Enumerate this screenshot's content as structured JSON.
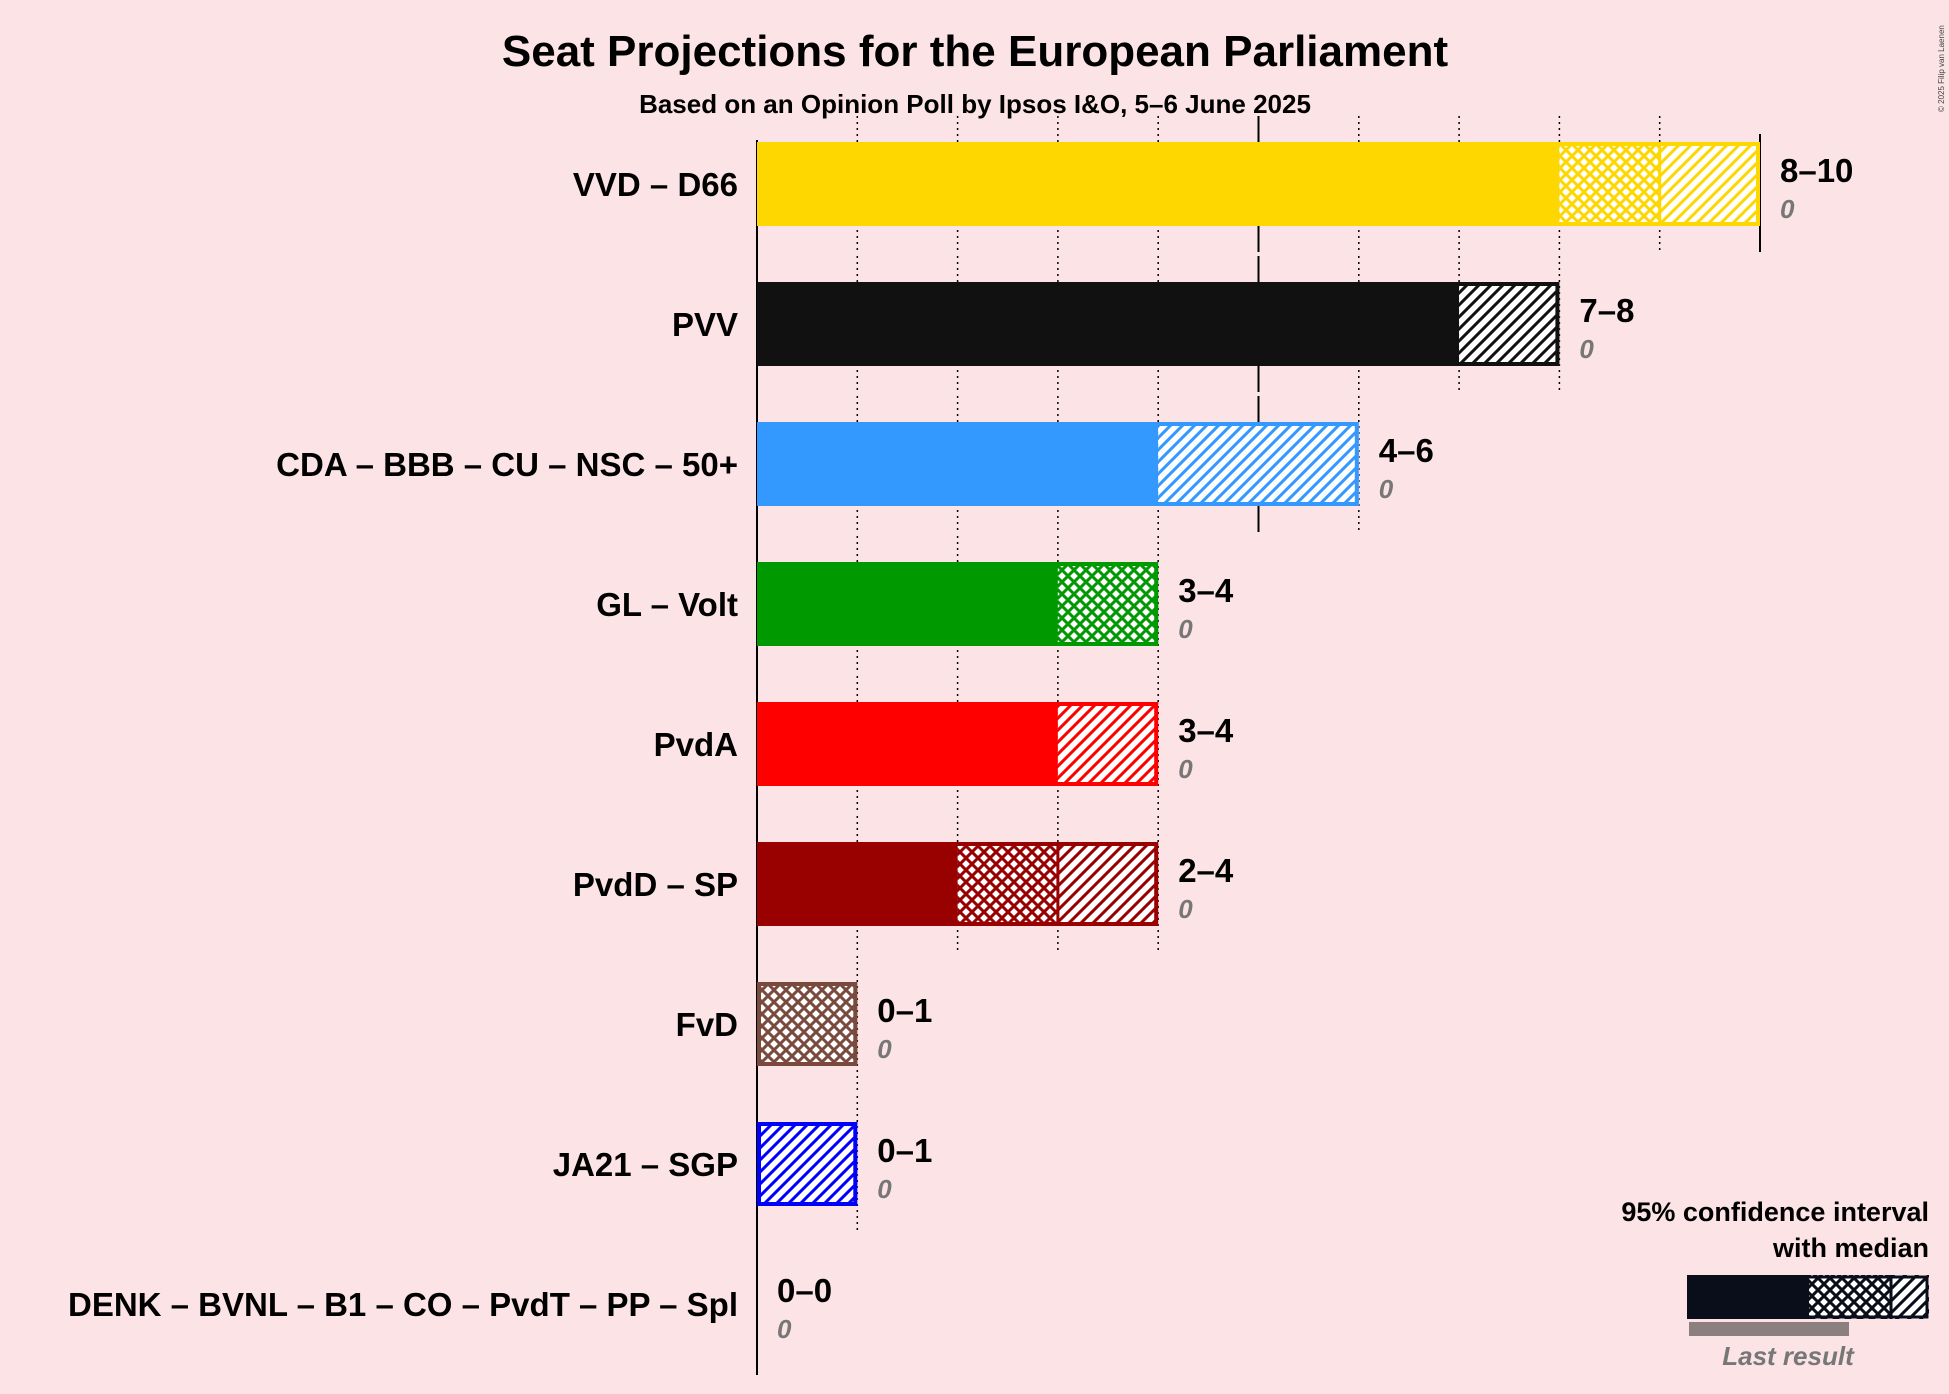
{
  "chart_data": {
    "type": "bar",
    "orientation": "horizontal",
    "title": "Seat Projections for the European Parliament",
    "subtitle": "Based on an Opinion Poll by Ipsos I&O, 5–6 June 2025",
    "xlim": [
      0,
      10
    ],
    "grid": true,
    "categories": [
      "VVD – D66",
      "PVV",
      "CDA – BBB – CU – NSC – 50+",
      "GL – Volt",
      "PvdA",
      "PvdD – SP",
      "FvD",
      "JA21 – SGP",
      "DENK – BVNL – B1 – CO – PvdT – PP – Spl"
    ],
    "series": [
      {
        "values": [
          {
            "party": "VVD – D66",
            "low": 8,
            "median": 9,
            "high": 10,
            "range_label": "8–10",
            "last_result": 0,
            "last_label": "0",
            "color": "#FFD700"
          },
          {
            "party": "PVV",
            "low": 7,
            "median": 7,
            "high": 8,
            "range_label": "7–8",
            "last_result": 0,
            "last_label": "0",
            "color": "#111111"
          },
          {
            "party": "CDA – BBB – CU – NSC – 50+",
            "low": 4,
            "median": 4,
            "high": 6,
            "range_label": "4–6",
            "last_result": 0,
            "last_label": "0",
            "color": "#3399FF"
          },
          {
            "party": "GL – Volt",
            "low": 3,
            "median": 4,
            "high": 4,
            "range_label": "3–4",
            "last_result": 0,
            "last_label": "0",
            "color": "#009900"
          },
          {
            "party": "PvdA",
            "low": 3,
            "median": 3,
            "high": 4,
            "range_label": "3–4",
            "last_result": 0,
            "last_label": "0",
            "color": "#FF0000"
          },
          {
            "party": "PvdD – SP",
            "low": 2,
            "median": 3,
            "high": 4,
            "range_label": "2–4",
            "last_result": 0,
            "last_label": "0",
            "color": "#990000"
          },
          {
            "party": "FvD",
            "low": 0,
            "median": 1,
            "high": 1,
            "range_label": "0–1",
            "last_result": 0,
            "last_label": "0",
            "color": "#7B4A3F"
          },
          {
            "party": "JA21 – SGP",
            "low": 0,
            "median": 0,
            "high": 1,
            "range_label": "0–1",
            "last_result": 0,
            "last_label": "0",
            "color": "#0000FF"
          },
          {
            "party": "DENK – BVNL – B1 – CO – PvdT – PP – Spl",
            "low": 0,
            "median": 0,
            "high": 0,
            "range_label": "0–0",
            "last_result": 0,
            "last_label": "0",
            "color": "#888888"
          }
        ]
      }
    ],
    "legend": {
      "placement": "bottom-right",
      "line1": "95% confidence interval",
      "line2": "with median",
      "last_result": "Last result"
    },
    "copyright": "© 2025 Filip van Laenen"
  }
}
